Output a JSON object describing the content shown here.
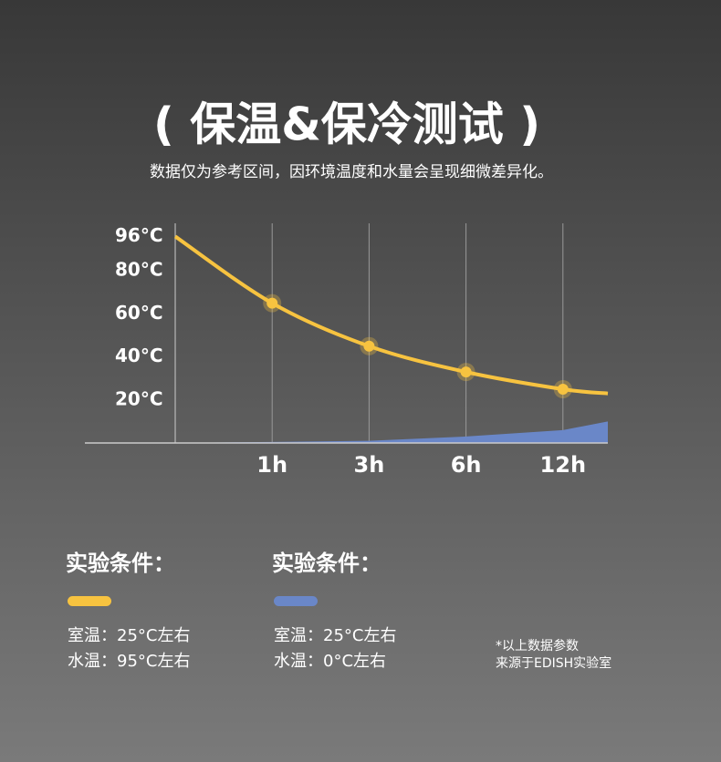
{
  "chart_data": {
    "type": "line",
    "title": "( 保温&保冷测试 )",
    "subtitle": "数据仅为参考区间，因环境温度和水量会呈现细微差异化。",
    "categories": [
      null,
      "1h",
      "3h",
      "6h",
      "12h",
      null
    ],
    "series": [
      {
        "color": "#f7c340",
        "values": [
          96,
          65,
          45,
          33,
          25,
          23
        ]
      },
      {
        "color": "#6a87c8",
        "values": [
          0,
          0.5,
          1,
          3,
          6,
          10
        ]
      }
    ],
    "ylim": [
      0,
      100
    ],
    "yticks": [
      {
        "value": 20,
        "label": "20°C"
      },
      {
        "value": 40,
        "label": "40°C"
      },
      {
        "value": 60,
        "label": "60°C"
      },
      {
        "value": 80,
        "label": "80°C"
      },
      {
        "value": 96,
        "label": "96°C"
      }
    ],
    "grid": true
  },
  "conditions": [
    {
      "heading": "实验条件：",
      "lines": [
        "室温：25°C左右",
        "水温：95°C左右"
      ]
    },
    {
      "heading": "实验条件：",
      "lines": [
        "室温：25°C左右",
        "水温：0°C左右"
      ]
    }
  ],
  "note": [
    "*以上数据参数",
    "来源于EDISH实验室"
  ]
}
